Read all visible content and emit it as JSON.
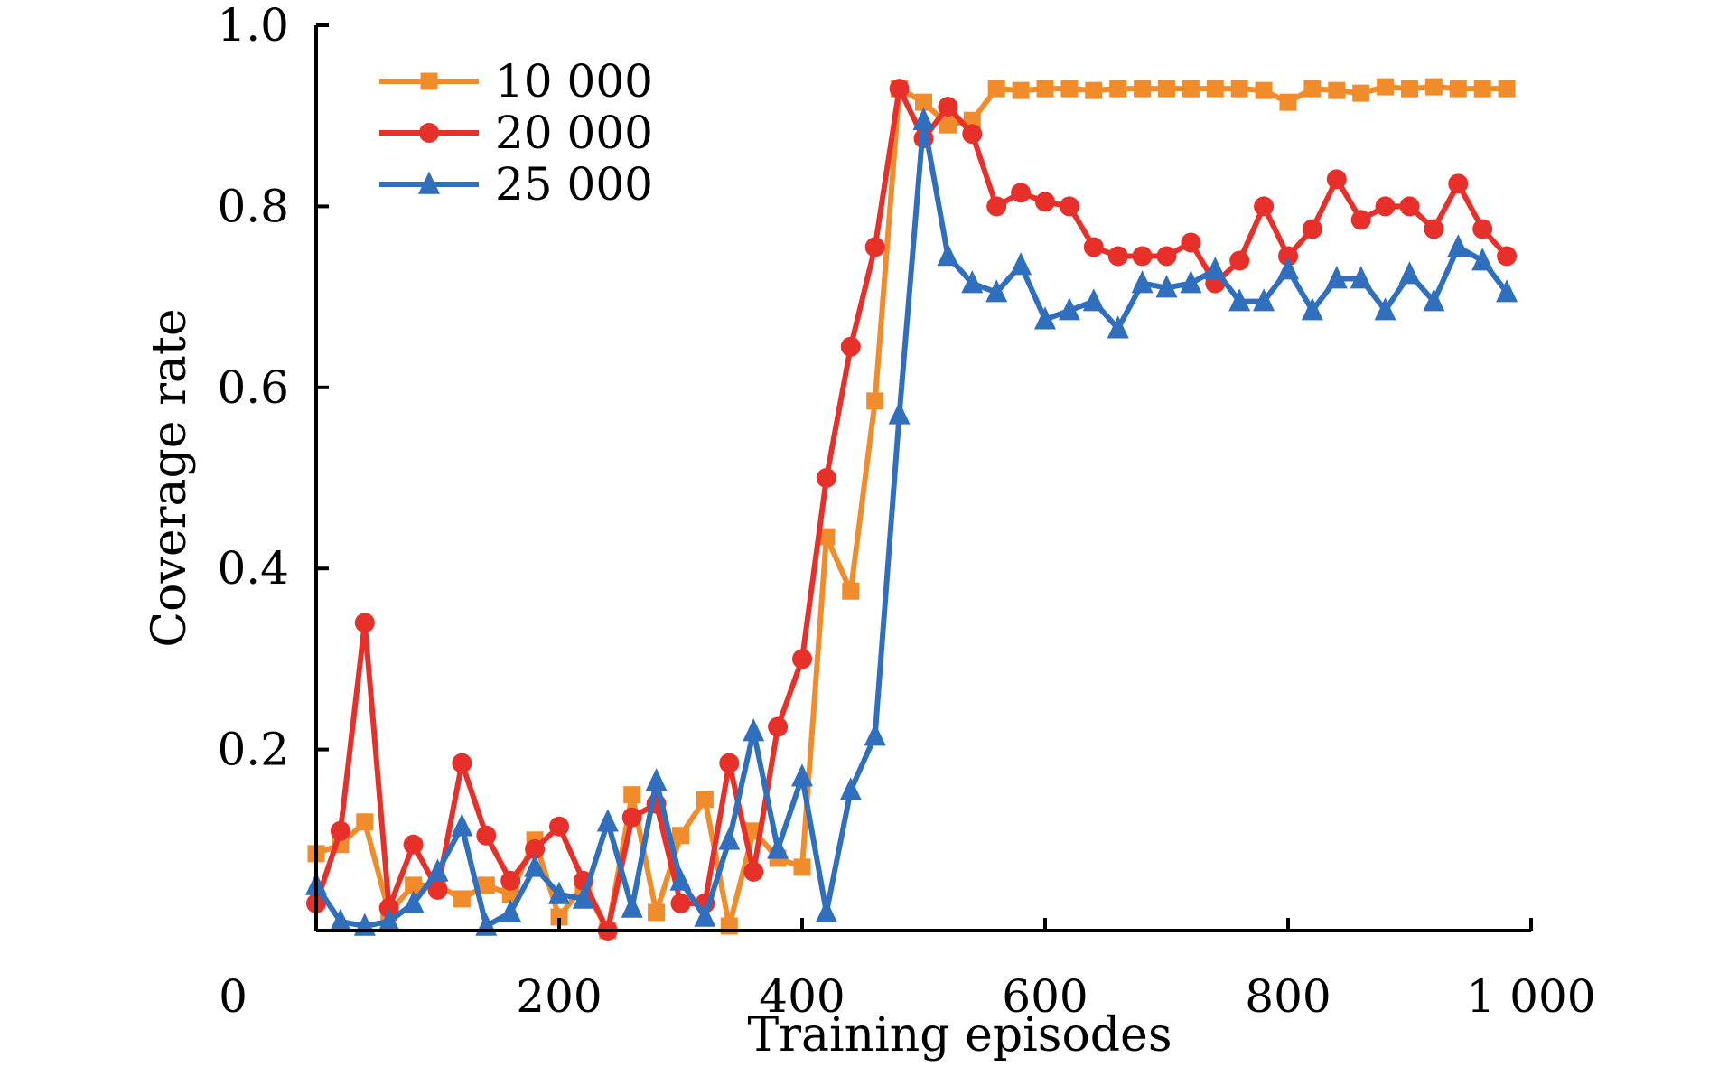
{
  "chart_data": {
    "type": "line",
    "xlabel": "Training episodes",
    "ylabel": "Coverage rate",
    "xlim": [
      0,
      1000
    ],
    "ylim": [
      0,
      1.0
    ],
    "xticks": [
      0,
      200,
      400,
      600,
      800,
      1000
    ],
    "xtick_labels": [
      "0",
      "200",
      "400",
      "600",
      "800",
      "1 000"
    ],
    "yticks": [
      0.2,
      0.4,
      0.6,
      0.8,
      1.0
    ],
    "ytick_labels": [
      "0.2",
      "0.4",
      "0.6",
      "0.8",
      "1.0"
    ],
    "legend_position": "top-left",
    "x": [
      0,
      20,
      40,
      60,
      80,
      100,
      120,
      140,
      160,
      180,
      200,
      220,
      240,
      260,
      280,
      300,
      320,
      340,
      360,
      380,
      400,
      420,
      440,
      460,
      480,
      500,
      520,
      540,
      560,
      580,
      600,
      620,
      640,
      660,
      680,
      700,
      720,
      740,
      760,
      780,
      800,
      820,
      840,
      860,
      880,
      900,
      920,
      940,
      960,
      980
    ],
    "series": [
      {
        "name": "10 000",
        "color": "#f08c2b",
        "marker": "square",
        "values": [
          0.085,
          0.095,
          0.12,
          0.02,
          0.05,
          0.05,
          0.035,
          0.05,
          0.04,
          0.1,
          0.015,
          0.05,
          0.0,
          0.15,
          0.02,
          0.105,
          0.145,
          0.005,
          0.11,
          0.08,
          0.07,
          0.435,
          0.375,
          0.585,
          0.93,
          0.915,
          0.89,
          0.895,
          0.93,
          0.928,
          0.93,
          0.93,
          0.928,
          0.93,
          0.93,
          0.93,
          0.93,
          0.93,
          0.93,
          0.928,
          0.915,
          0.93,
          0.928,
          0.925,
          0.932,
          0.93,
          0.932,
          0.93,
          0.93,
          0.93
        ]
      },
      {
        "name": "20 000",
        "color": "#e8302a",
        "marker": "circle",
        "values": [
          0.03,
          0.11,
          0.34,
          0.025,
          0.095,
          0.045,
          0.185,
          0.105,
          0.055,
          0.09,
          0.115,
          0.055,
          0.0,
          0.125,
          0.14,
          0.03,
          0.03,
          0.185,
          0.065,
          0.225,
          0.3,
          0.5,
          0.645,
          0.755,
          0.93,
          0.875,
          0.91,
          0.88,
          0.8,
          0.815,
          0.805,
          0.8,
          0.755,
          0.745,
          0.745,
          0.745,
          0.76,
          0.715,
          0.74,
          0.8,
          0.745,
          0.775,
          0.83,
          0.785,
          0.8,
          0.8,
          0.775,
          0.825,
          0.775,
          0.745
        ]
      },
      {
        "name": "25 000",
        "color": "#2f6fbd",
        "marker": "triangle",
        "values": [
          0.05,
          0.01,
          0.005,
          0.01,
          0.03,
          0.065,
          0.115,
          0.005,
          0.02,
          0.07,
          0.04,
          0.035,
          0.12,
          0.025,
          0.165,
          0.055,
          0.015,
          0.1,
          0.22,
          0.09,
          0.17,
          0.02,
          0.155,
          0.215,
          0.57,
          0.895,
          0.745,
          0.715,
          0.705,
          0.735,
          0.675,
          0.685,
          0.695,
          0.665,
          0.715,
          0.71,
          0.715,
          0.73,
          0.695,
          0.695,
          0.73,
          0.685,
          0.72,
          0.72,
          0.685,
          0.725,
          0.695,
          0.755,
          0.74,
          0.705
        ]
      }
    ]
  }
}
